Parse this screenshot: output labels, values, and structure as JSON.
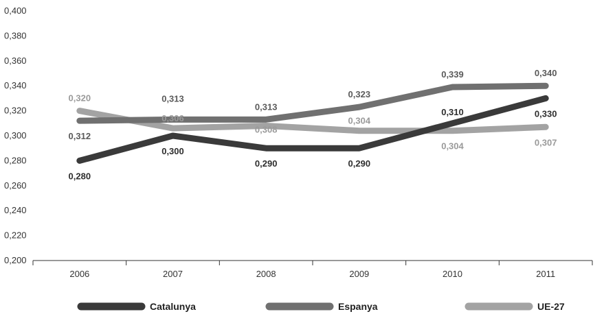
{
  "chart_data": {
    "type": "line",
    "x": [
      "2006",
      "2007",
      "2008",
      "2009",
      "2010",
      "2011"
    ],
    "y_ticks": [
      "0,200",
      "0,220",
      "0,240",
      "0,260",
      "0,280",
      "0,300",
      "0,320",
      "0,340",
      "0,360",
      "0,380",
      "0,400"
    ],
    "ylim": [
      0.2,
      0.4
    ],
    "grid": false,
    "legend_position": "bottom",
    "series": [
      {
        "name": "Catalunya",
        "color": "#3a3a3a",
        "values": [
          0.28,
          0.3,
          0.29,
          0.29,
          0.31,
          0.33
        ],
        "labels": [
          "0,280",
          "0,300",
          "0,290",
          "0,290",
          "0,310",
          "0,330"
        ]
      },
      {
        "name": "Espanya",
        "color": "#707070",
        "values": [
          0.312,
          0.313,
          0.313,
          0.323,
          0.339,
          0.34
        ],
        "labels": [
          "0,312",
          "0,313",
          "0,313",
          "0,323",
          "0,339",
          "0,340"
        ]
      },
      {
        "name": "UE-27",
        "color": "#a3a3a3",
        "values": [
          0.32,
          0.306,
          0.308,
          0.304,
          0.304,
          0.307
        ],
        "labels": [
          "0,320",
          "0,306",
          "0,308",
          "0,304",
          "0,304",
          "0,307"
        ]
      }
    ]
  }
}
